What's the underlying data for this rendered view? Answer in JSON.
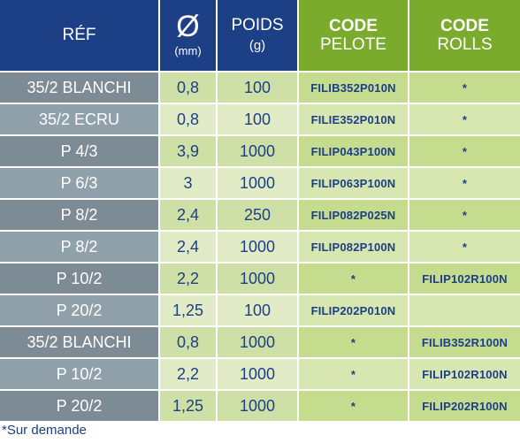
{
  "header": {
    "ref": "RÉF",
    "diameter_symbol": "Ø",
    "diameter_unit": "(mm)",
    "poids": "POIDS",
    "poids_unit": "(g)",
    "code_pelote_1": "CODE",
    "code_pelote_2": "PELOTE",
    "code_rolls_1": "CODE",
    "code_rolls_2": "ROLLS"
  },
  "rows": [
    {
      "ref": "35/2 BLANCHI",
      "diameter": "0,8",
      "poids": "100",
      "pelote": "FILIB352P010N",
      "rolls": "*"
    },
    {
      "ref": "35/2 ECRU",
      "diameter": "0,8",
      "poids": "100",
      "pelote": "FILIE352P010N",
      "rolls": "*"
    },
    {
      "ref": "P 4/3",
      "diameter": "3,9",
      "poids": "1000",
      "pelote": "FILIP043P100N",
      "rolls": "*"
    },
    {
      "ref": "P 6/3",
      "diameter": "3",
      "poids": "1000",
      "pelote": "FILIP063P100N",
      "rolls": "*"
    },
    {
      "ref": "P 8/2",
      "diameter": "2,4",
      "poids": "250",
      "pelote": "FILIP082P025N",
      "rolls": "*"
    },
    {
      "ref": "P 8/2",
      "diameter": "2,4",
      "poids": "1000",
      "pelote": "FILIP082P100N",
      "rolls": "*"
    },
    {
      "ref": "P 10/2",
      "diameter": "2,2",
      "poids": "1000",
      "pelote": "*",
      "rolls": "FILIP102R100N"
    },
    {
      "ref": "P 20/2",
      "diameter": "1,25",
      "poids": "100",
      "pelote": "FILIP202P010N",
      "rolls": ""
    },
    {
      "ref": "35/2 BLANCHI",
      "diameter": "0,8",
      "poids": "1000",
      "pelote": "*",
      "rolls": "FILIB352R100N"
    },
    {
      "ref": "P 10/2",
      "diameter": "2,2",
      "poids": "1000",
      "pelote": "*",
      "rolls": "FILIP102R100N"
    },
    {
      "ref": "P 20/2",
      "diameter": "1,25",
      "poids": "1000",
      "pelote": "*",
      "rolls": "FILIP202R100N"
    }
  ],
  "footnote": "*Sur demande"
}
